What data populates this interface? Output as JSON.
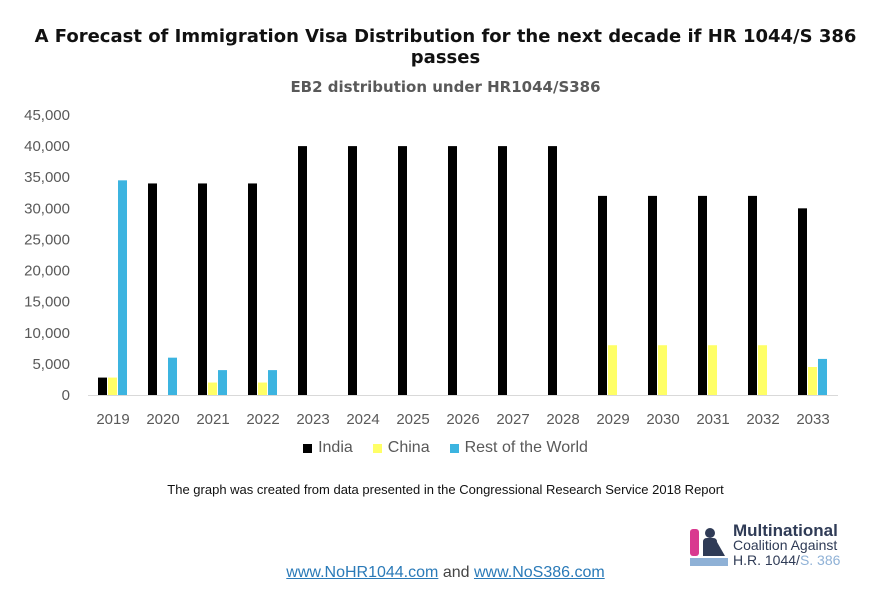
{
  "header": {
    "main_title": "A Forecast of Immigration Visa Distribution for the next decade if HR 1044/S 386 passes"
  },
  "chart_data": {
    "type": "bar",
    "title": "EB2 distribution under HR1044/S386",
    "xlabel": "",
    "ylabel": "",
    "ylim": [
      0,
      45000
    ],
    "yticks": [
      0,
      5000,
      10000,
      15000,
      20000,
      25000,
      30000,
      35000,
      40000,
      45000
    ],
    "ytick_labels": [
      "0",
      "5,000",
      "10,000",
      "15,000",
      "20,000",
      "25,000",
      "30,000",
      "35,000",
      "40,000",
      "45,000"
    ],
    "grid": false,
    "legend_position": "bottom",
    "categories": [
      "2019",
      "2020",
      "2021",
      "2022",
      "2023",
      "2024",
      "2025",
      "2026",
      "2027",
      "2028",
      "2029",
      "2030",
      "2031",
      "2032",
      "2033"
    ],
    "series": [
      {
        "name": "India",
        "color": "#000000",
        "values": [
          2800,
          34000,
          34000,
          34000,
          40000,
          40000,
          40000,
          40000,
          40000,
          40000,
          32000,
          32000,
          32000,
          32000,
          30000
        ]
      },
      {
        "name": "China",
        "color": "#ffff66",
        "values": [
          2800,
          0,
          2000,
          2000,
          0,
          0,
          0,
          0,
          0,
          0,
          8000,
          8000,
          8000,
          8000,
          4500
        ]
      },
      {
        "name": "Rest of the World",
        "color": "#3cb4e0",
        "values": [
          34500,
          6000,
          4000,
          4000,
          0,
          0,
          0,
          0,
          0,
          0,
          0,
          0,
          0,
          0,
          5800
        ]
      }
    ]
  },
  "source_note": "The graph was created from data presented in the Congressional Research Service 2018 Report",
  "logo": {
    "line1": "Multinational",
    "line2": "Coalition Against",
    "line3_main": "H.R. 1044/",
    "line3_accent": "S. 386",
    "colors": {
      "pink": "#d9398f",
      "navy": "#2f3b56",
      "blue": "#8fb1d6"
    }
  },
  "footer": {
    "link1": "www.NoHR1044.com",
    "connector": "and",
    "link2": "www.NoS386.com"
  }
}
